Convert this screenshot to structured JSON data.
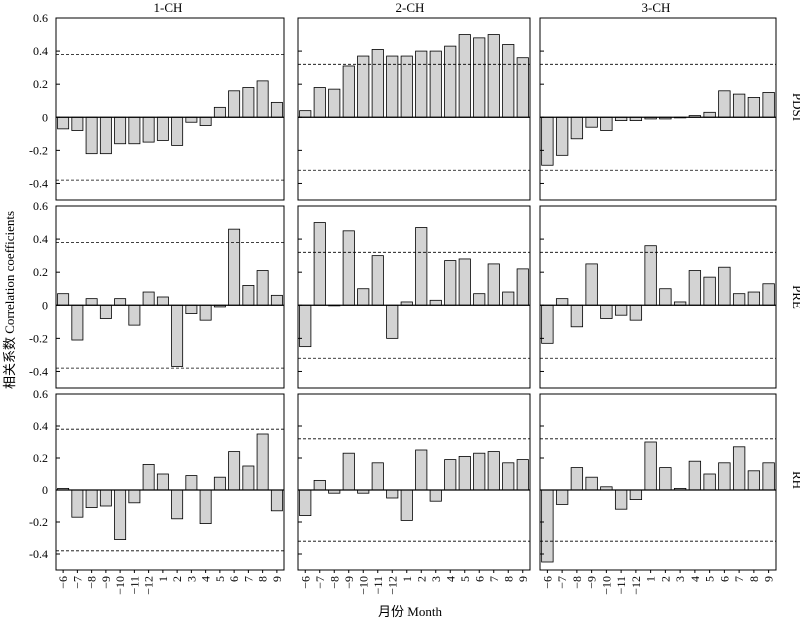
{
  "figure": {
    "columns": [
      "1-CH",
      "2-CH",
      "3-CH"
    ],
    "rows": [
      "PDSI",
      "PRE",
      "RH"
    ],
    "y_axis_label": "相关系数 Correlation coefficients",
    "x_axis_label": "月份 Month",
    "y_tick_labels": [
      "0.6",
      "0.4",
      "0.2",
      "0",
      "-0.2",
      "-0.4"
    ],
    "month_labels": [
      "−6",
      "−7",
      "−8",
      "−9",
      "−10",
      "−11",
      "−12",
      "1",
      "2",
      "3",
      "4",
      "5",
      "6",
      "7",
      "8",
      "9"
    ]
  },
  "chart_data": {
    "type": "bar",
    "layout": "3x3 grid of small-multiple bar charts",
    "categories": [
      "-6",
      "-7",
      "-8",
      "-9",
      "-10",
      "-11",
      "-12",
      "1",
      "2",
      "3",
      "4",
      "5",
      "6",
      "7",
      "8",
      "9"
    ],
    "ylim": [
      -0.5,
      0.6
    ],
    "bar_color": "#d3d3d3",
    "bar_stroke": "#000000",
    "grid": false,
    "panels": [
      {
        "row": "PDSI",
        "column": "1-CH",
        "threshold": 0.38,
        "values": [
          -0.07,
          -0.08,
          -0.22,
          -0.22,
          -0.16,
          -0.16,
          -0.15,
          -0.14,
          -0.17,
          -0.03,
          -0.05,
          0.06,
          0.16,
          0.18,
          0.22,
          0.09
        ]
      },
      {
        "row": "PDSI",
        "column": "2-CH",
        "threshold": 0.32,
        "values": [
          0.04,
          0.18,
          0.17,
          0.31,
          0.37,
          0.41,
          0.37,
          0.37,
          0.4,
          0.4,
          0.43,
          0.5,
          0.48,
          0.5,
          0.44,
          0.36
        ]
      },
      {
        "row": "PDSI",
        "column": "3-CH",
        "threshold": 0.32,
        "values": [
          -0.29,
          -0.23,
          -0.13,
          -0.06,
          -0.08,
          -0.02,
          -0.02,
          -0.01,
          -0.01,
          0.0,
          0.01,
          0.03,
          0.16,
          0.14,
          0.12,
          0.15
        ]
      },
      {
        "row": "PRE",
        "column": "1-CH",
        "threshold": 0.38,
        "values": [
          0.07,
          -0.21,
          0.04,
          -0.08,
          0.04,
          -0.12,
          0.08,
          0.05,
          -0.37,
          -0.05,
          -0.09,
          -0.01,
          0.46,
          0.12,
          0.21,
          0.06
        ]
      },
      {
        "row": "PRE",
        "column": "2-CH",
        "threshold": 0.32,
        "values": [
          -0.25,
          0.5,
          0.0,
          0.45,
          0.1,
          0.3,
          -0.2,
          0.02,
          0.47,
          0.03,
          0.27,
          0.28,
          0.07,
          0.25,
          0.08,
          0.22
        ]
      },
      {
        "row": "PRE",
        "column": "3-CH",
        "threshold": 0.32,
        "values": [
          -0.23,
          0.04,
          -0.13,
          0.25,
          -0.08,
          -0.06,
          -0.09,
          0.36,
          0.1,
          0.02,
          0.21,
          0.17,
          0.23,
          0.07,
          0.08,
          0.13
        ]
      },
      {
        "row": "RH",
        "column": "1-CH",
        "threshold": 0.38,
        "values": [
          0.01,
          -0.17,
          -0.11,
          -0.1,
          -0.31,
          -0.08,
          0.16,
          0.1,
          -0.18,
          0.09,
          -0.21,
          0.08,
          0.24,
          0.15,
          0.35,
          -0.13
        ]
      },
      {
        "row": "RH",
        "column": "2-CH",
        "threshold": 0.32,
        "values": [
          -0.16,
          0.06,
          -0.02,
          0.23,
          -0.02,
          0.17,
          -0.05,
          -0.19,
          0.25,
          -0.07,
          0.19,
          0.21,
          0.23,
          0.24,
          0.17,
          0.19
        ]
      },
      {
        "row": "RH",
        "column": "3-CH",
        "threshold": 0.32,
        "values": [
          -0.45,
          -0.09,
          0.14,
          0.08,
          0.02,
          -0.12,
          -0.06,
          0.3,
          0.14,
          0.01,
          0.18,
          0.1,
          0.17,
          0.27,
          0.12,
          0.17
        ]
      }
    ]
  }
}
